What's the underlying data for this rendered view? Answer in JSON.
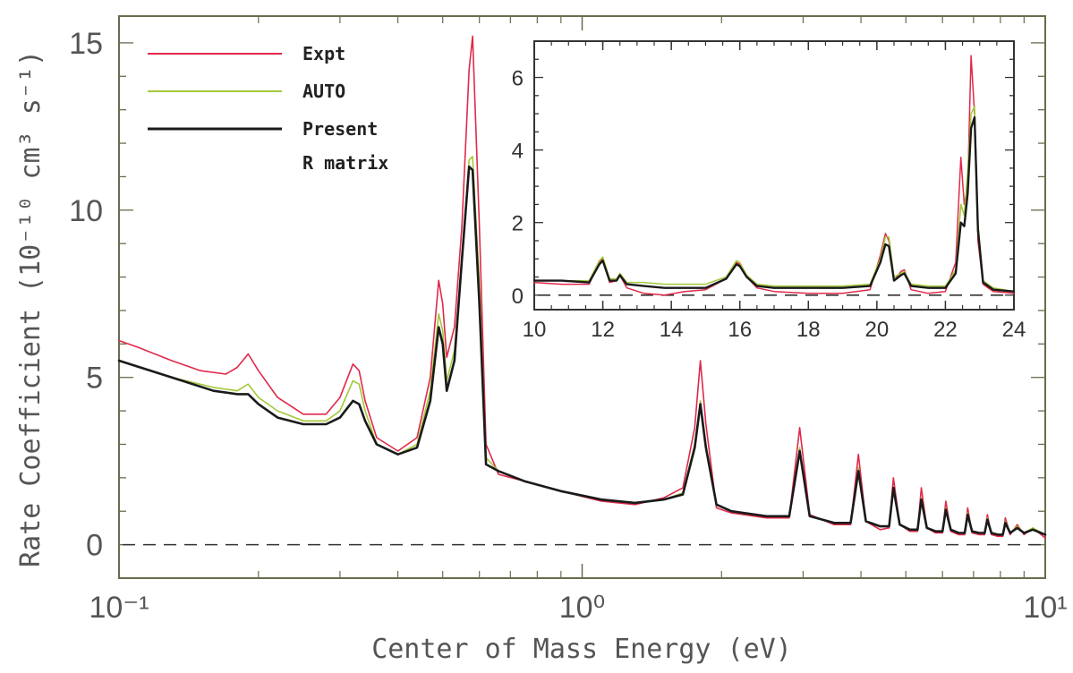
{
  "chart_data": [
    {
      "type": "line",
      "xlabel": "Center of Mass Energy (eV)",
      "ylabel": "Rate Coefficient (10⁻¹⁰ cm³ s⁻¹)",
      "x_scale": "log",
      "xlim": [
        0.1,
        10
      ],
      "ylim": [
        -1,
        15.8
      ],
      "x_ticks": [
        0.1,
        1,
        10
      ],
      "x_tick_labels": [
        "10⁻¹",
        "10⁰",
        "10¹"
      ],
      "y_ticks": [
        0,
        5,
        10,
        15
      ],
      "y_tick_labels": [
        "0",
        "5",
        "10",
        "15"
      ],
      "reference_line": {
        "y": 0,
        "style": "dashed"
      },
      "legend_position": "top-left",
      "series": [
        {
          "name": "Expt",
          "color": "#e0294a",
          "x": [
            0.1,
            0.11,
            0.13,
            0.15,
            0.17,
            0.18,
            0.19,
            0.2,
            0.22,
            0.25,
            0.28,
            0.3,
            0.32,
            0.33,
            0.34,
            0.36,
            0.4,
            0.44,
            0.47,
            0.49,
            0.5,
            0.51,
            0.53,
            0.55,
            0.57,
            0.58,
            0.6,
            0.62,
            0.66,
            0.75,
            0.9,
            1.1,
            1.3,
            1.5,
            1.65,
            1.75,
            1.8,
            1.85,
            1.95,
            2.1,
            2.5,
            2.8,
            2.95,
            3.1,
            3.5,
            3.8,
            3.95,
            4.1,
            4.4,
            4.6,
            4.7,
            4.85,
            5.1,
            5.3,
            5.4,
            5.55,
            5.8,
            6.0,
            6.1,
            6.25,
            6.5,
            6.7,
            6.8,
            6.95,
            7.2,
            7.4,
            7.5,
            7.65,
            7.9,
            8.1,
            8.2,
            8.4,
            8.7,
            9.0,
            9.4,
            10.0
          ],
          "values": [
            6.1,
            5.9,
            5.5,
            5.2,
            5.1,
            5.3,
            5.7,
            5.2,
            4.4,
            3.9,
            3.9,
            4.4,
            5.4,
            5.2,
            4.3,
            3.2,
            2.8,
            3.2,
            5.0,
            7.9,
            7.2,
            5.6,
            6.5,
            9.5,
            14.2,
            15.2,
            9.5,
            3.0,
            2.1,
            1.9,
            1.6,
            1.3,
            1.2,
            1.4,
            1.7,
            3.5,
            5.5,
            3.6,
            1.1,
            0.95,
            0.8,
            0.8,
            3.5,
            0.9,
            0.6,
            0.6,
            2.7,
            0.7,
            0.45,
            0.5,
            2.0,
            0.6,
            0.4,
            0.4,
            1.7,
            0.5,
            0.35,
            0.35,
            1.3,
            0.4,
            0.3,
            0.3,
            1.1,
            0.35,
            0.3,
            0.3,
            0.9,
            0.3,
            0.25,
            0.25,
            0.8,
            0.3,
            0.6,
            0.3,
            0.5,
            0.2
          ]
        },
        {
          "name": "AUTO",
          "color": "#a3c83a",
          "x": [
            0.1,
            0.13,
            0.16,
            0.18,
            0.19,
            0.2,
            0.22,
            0.25,
            0.28,
            0.3,
            0.32,
            0.33,
            0.34,
            0.36,
            0.4,
            0.44,
            0.47,
            0.49,
            0.5,
            0.51,
            0.53,
            0.55,
            0.57,
            0.58,
            0.6,
            0.62,
            0.66,
            0.75,
            0.9,
            1.1,
            1.3,
            1.5,
            1.65,
            1.75,
            1.8,
            1.85,
            1.95,
            2.1,
            2.5,
            2.8,
            2.95,
            3.1,
            3.5,
            3.8,
            3.95,
            4.1,
            4.4,
            4.6,
            4.7,
            4.85,
            5.1,
            5.3,
            5.4,
            5.55,
            5.8,
            6.0,
            6.1,
            6.25,
            6.5,
            6.7,
            6.8,
            6.95,
            7.2,
            7.4,
            7.5,
            7.65,
            7.9,
            8.1,
            8.2,
            8.4,
            8.7,
            9.0,
            9.4,
            10.0
          ],
          "values": [
            5.5,
            5.0,
            4.7,
            4.6,
            4.8,
            4.4,
            4.0,
            3.7,
            3.7,
            4.0,
            4.9,
            4.8,
            4.0,
            3.0,
            2.7,
            3.0,
            4.6,
            6.9,
            6.4,
            4.9,
            5.8,
            8.6,
            11.5,
            11.6,
            7.8,
            2.6,
            2.2,
            1.9,
            1.6,
            1.35,
            1.25,
            1.35,
            1.55,
            3.0,
            4.3,
            3.0,
            1.2,
            1.0,
            0.85,
            0.85,
            2.9,
            0.85,
            0.65,
            0.65,
            2.3,
            0.7,
            0.55,
            0.55,
            1.7,
            0.6,
            0.45,
            0.45,
            1.4,
            0.5,
            0.4,
            0.4,
            1.1,
            0.45,
            0.35,
            0.35,
            0.95,
            0.4,
            0.35,
            0.35,
            0.8,
            0.35,
            0.3,
            0.3,
            0.7,
            0.35,
            0.55,
            0.35,
            0.5,
            0.3
          ]
        },
        {
          "name": "Present R matrix",
          "color": "#1a1a1a",
          "x": [
            0.1,
            0.13,
            0.16,
            0.18,
            0.19,
            0.2,
            0.22,
            0.25,
            0.28,
            0.3,
            0.32,
            0.33,
            0.34,
            0.36,
            0.4,
            0.44,
            0.47,
            0.49,
            0.5,
            0.51,
            0.53,
            0.55,
            0.57,
            0.58,
            0.6,
            0.62,
            0.66,
            0.75,
            0.9,
            1.1,
            1.3,
            1.5,
            1.65,
            1.75,
            1.8,
            1.85,
            1.95,
            2.1,
            2.5,
            2.8,
            2.95,
            3.1,
            3.5,
            3.8,
            3.95,
            4.1,
            4.4,
            4.6,
            4.7,
            4.85,
            5.1,
            5.3,
            5.4,
            5.55,
            5.8,
            6.0,
            6.1,
            6.25,
            6.5,
            6.7,
            6.8,
            6.95,
            7.2,
            7.4,
            7.5,
            7.65,
            7.9,
            8.1,
            8.2,
            8.4,
            8.7,
            9.0,
            9.4,
            10.0
          ],
          "values": [
            5.5,
            5.0,
            4.6,
            4.5,
            4.5,
            4.2,
            3.8,
            3.6,
            3.6,
            3.8,
            4.3,
            4.2,
            3.7,
            3.0,
            2.7,
            2.9,
            4.3,
            6.5,
            6.0,
            4.6,
            5.5,
            8.5,
            11.3,
            11.2,
            7.2,
            2.4,
            2.2,
            1.9,
            1.6,
            1.35,
            1.25,
            1.35,
            1.5,
            2.9,
            4.2,
            2.9,
            1.2,
            1.0,
            0.85,
            0.85,
            2.8,
            0.85,
            0.65,
            0.65,
            2.2,
            0.7,
            0.55,
            0.55,
            1.7,
            0.6,
            0.45,
            0.45,
            1.35,
            0.5,
            0.4,
            0.4,
            1.05,
            0.45,
            0.35,
            0.35,
            0.9,
            0.4,
            0.35,
            0.35,
            0.75,
            0.35,
            0.3,
            0.3,
            0.65,
            0.35,
            0.5,
            0.35,
            0.45,
            0.3
          ]
        }
      ]
    },
    {
      "type": "line",
      "inset": true,
      "xlim": [
        10,
        24
      ],
      "ylim": [
        -0.4,
        7.0
      ],
      "x_ticks": [
        10,
        12,
        14,
        16,
        18,
        20,
        22,
        24
      ],
      "x_tick_labels": [
        "10",
        "12",
        "14",
        "16",
        "18",
        "20",
        "22",
        "24"
      ],
      "y_ticks": [
        0,
        2,
        4,
        6
      ],
      "y_tick_labels": [
        "0",
        "2",
        "4",
        "6"
      ],
      "reference_line": {
        "y": 0,
        "style": "dashed"
      },
      "series": [
        {
          "name": "Expt",
          "color": "#e0294a",
          "x": [
            10.0,
            10.8,
            11.6,
            11.9,
            12.0,
            12.2,
            12.4,
            12.5,
            12.7,
            13.2,
            13.8,
            14.4,
            15.0,
            15.6,
            15.9,
            16.0,
            16.2,
            16.5,
            17.0,
            18.0,
            19.0,
            19.8,
            20.1,
            20.25,
            20.35,
            20.5,
            20.7,
            20.8,
            21.0,
            21.5,
            22.0,
            22.3,
            22.45,
            22.55,
            22.65,
            22.75,
            22.85,
            22.95,
            23.1,
            23.4,
            24.0
          ],
          "values": [
            0.35,
            0.3,
            0.3,
            0.9,
            1.0,
            0.35,
            0.4,
            0.55,
            0.2,
            0.05,
            0.0,
            0.1,
            0.15,
            0.45,
            0.9,
            0.85,
            0.5,
            0.2,
            0.1,
            0.05,
            0.05,
            0.15,
            1.1,
            1.7,
            1.5,
            0.4,
            0.65,
            0.7,
            0.15,
            0.05,
            0.1,
            0.9,
            3.8,
            2.5,
            3.0,
            6.6,
            5.0,
            1.5,
            0.3,
            0.1,
            0.05
          ]
        },
        {
          "name": "AUTO",
          "color": "#a3c83a",
          "x": [
            10.0,
            10.8,
            11.6,
            11.9,
            12.0,
            12.2,
            12.4,
            12.5,
            12.7,
            13.2,
            13.8,
            14.4,
            15.0,
            15.6,
            15.9,
            16.0,
            16.2,
            16.5,
            17.0,
            18.0,
            19.0,
            19.8,
            20.1,
            20.25,
            20.35,
            20.5,
            20.7,
            20.8,
            21.0,
            21.5,
            22.0,
            22.3,
            22.45,
            22.55,
            22.65,
            22.75,
            22.85,
            22.95,
            23.1,
            23.4,
            24.0
          ],
          "values": [
            0.4,
            0.4,
            0.4,
            0.95,
            1.05,
            0.45,
            0.45,
            0.6,
            0.35,
            0.35,
            0.3,
            0.3,
            0.3,
            0.5,
            0.95,
            0.9,
            0.55,
            0.3,
            0.25,
            0.25,
            0.25,
            0.3,
            1.0,
            1.6,
            1.6,
            0.5,
            0.6,
            0.65,
            0.3,
            0.25,
            0.25,
            0.7,
            2.5,
            2.2,
            3.4,
            5.0,
            5.2,
            2.0,
            0.4,
            0.2,
            0.1
          ]
        },
        {
          "name": "Present R matrix",
          "color": "#1a1a1a",
          "x": [
            10.0,
            10.8,
            11.6,
            11.9,
            12.0,
            12.2,
            12.4,
            12.5,
            12.7,
            13.2,
            13.8,
            14.4,
            15.0,
            15.6,
            15.9,
            16.0,
            16.2,
            16.5,
            17.0,
            18.0,
            19.0,
            19.8,
            20.1,
            20.25,
            20.35,
            20.5,
            20.7,
            20.8,
            21.0,
            21.5,
            22.0,
            22.3,
            22.45,
            22.55,
            22.65,
            22.75,
            22.85,
            22.95,
            23.1,
            23.4,
            24.0
          ],
          "values": [
            0.4,
            0.4,
            0.35,
            0.85,
            0.95,
            0.4,
            0.4,
            0.55,
            0.3,
            0.25,
            0.2,
            0.2,
            0.2,
            0.45,
            0.85,
            0.8,
            0.5,
            0.25,
            0.2,
            0.2,
            0.2,
            0.25,
            0.9,
            1.4,
            1.35,
            0.4,
            0.55,
            0.6,
            0.25,
            0.2,
            0.2,
            0.6,
            2.0,
            1.9,
            2.8,
            4.6,
            4.9,
            1.8,
            0.35,
            0.15,
            0.1
          ]
        }
      ]
    }
  ],
  "legend": {
    "entries": [
      {
        "label": "Expt",
        "color": "#e0294a"
      },
      {
        "label": "AUTO",
        "color": "#a3c83a"
      },
      {
        "label": "Present",
        "label2": "R matrix",
        "color": "#1a1a1a"
      }
    ]
  }
}
